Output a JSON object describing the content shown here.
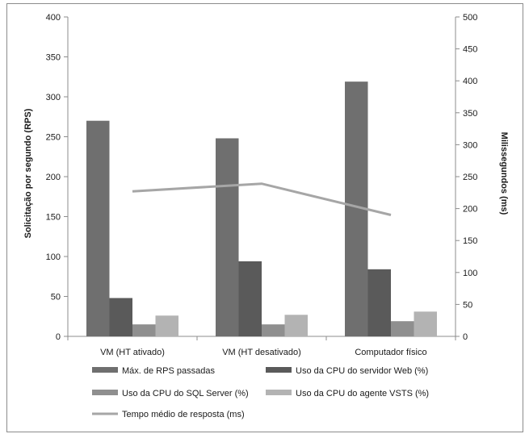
{
  "chart_data": {
    "type": "bar",
    "categories": [
      "VM (HT ativado)",
      "VM (HT desativado)",
      "Computador físico"
    ],
    "series": [
      {
        "name": "Máx. de RPS passadas",
        "values": [
          270,
          248,
          319
        ],
        "color": "#6f6f6f",
        "axis": "left"
      },
      {
        "name": "Uso da CPU do servidor Web (%)",
        "values": [
          48,
          94,
          84
        ],
        "color": "#5a5a5a",
        "axis": "left"
      },
      {
        "name": "Uso da CPU do SQL Server (%)",
        "values": [
          15,
          15,
          19
        ],
        "color": "#8f8f8f",
        "axis": "left"
      },
      {
        "name": "Uso da CPU do agente VSTS (%)",
        "values": [
          26,
          27,
          31
        ],
        "color": "#b3b3b3",
        "axis": "left"
      }
    ],
    "line_series": {
      "name": "Tempo médio de resposta (ms)",
      "values": [
        227,
        239,
        190
      ],
      "color": "#a6a6a6",
      "axis": "right"
    },
    "ylabel": "Solicitação por segundo (RPS)",
    "y2label": "Milissegundos (ms)",
    "ylim": [
      0,
      400
    ],
    "y2lim": [
      0,
      500
    ],
    "yticks": [
      "0",
      "50",
      "100",
      "150",
      "200",
      "250",
      "300",
      "350",
      "400"
    ],
    "y2ticks": [
      "0",
      "50",
      "100",
      "150",
      "200",
      "250",
      "300",
      "350",
      "400",
      "450",
      "500"
    ],
    "grid": false,
    "legend_position": "bottom"
  }
}
